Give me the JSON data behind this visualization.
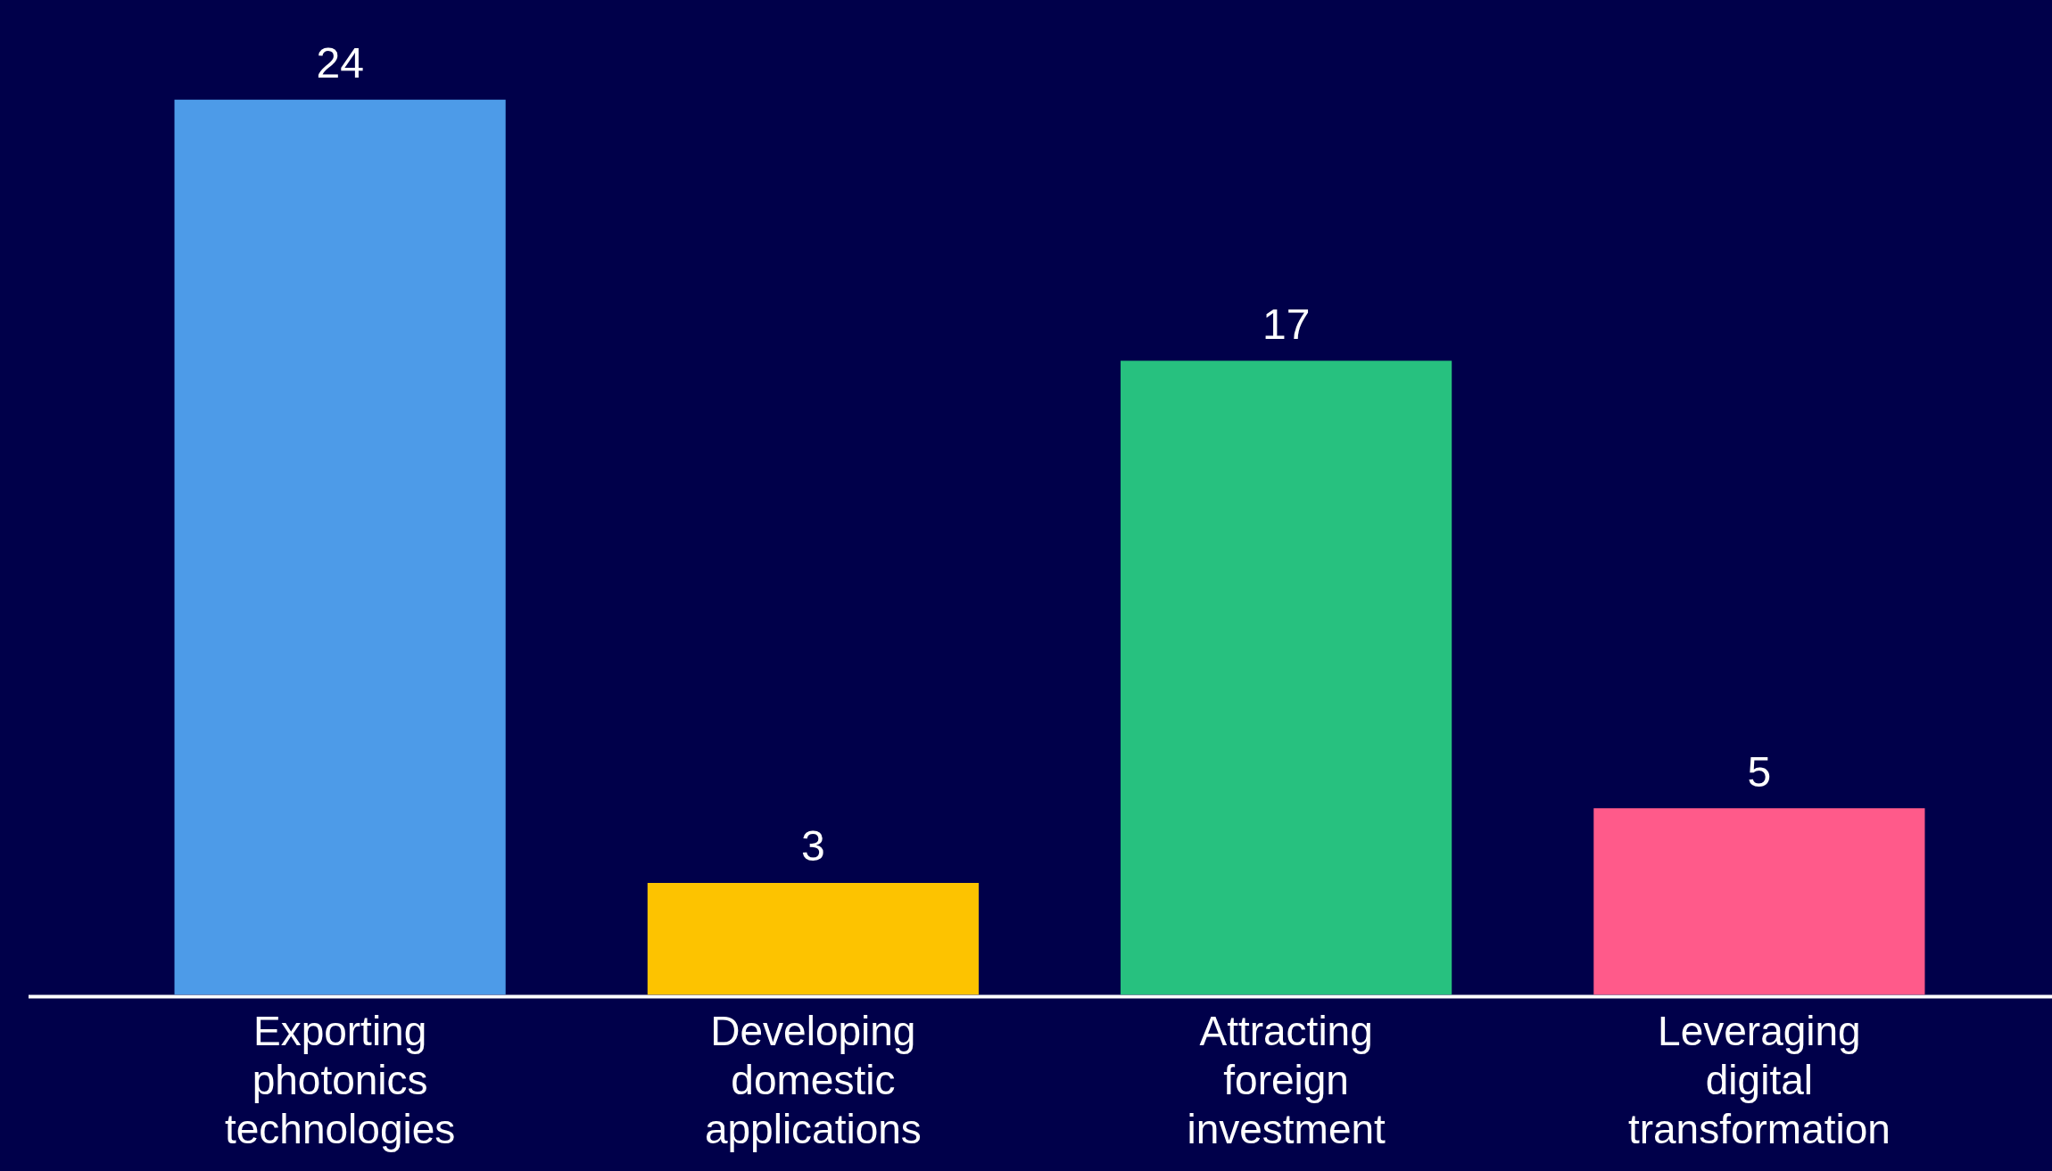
{
  "chart_data": {
    "type": "bar",
    "categories": [
      "Exporting photonics technologies",
      "Developing domestic applications",
      "Attracting foreign investment",
      "Leveraging digital transformation"
    ],
    "values": [
      24,
      3,
      17,
      5
    ],
    "colors": [
      "#4d9be8",
      "#fdc300",
      "#27c17f",
      "#ff5a8a"
    ],
    "data_labels": true,
    "grid": false,
    "legend": false,
    "tick_labels": "x"
  }
}
